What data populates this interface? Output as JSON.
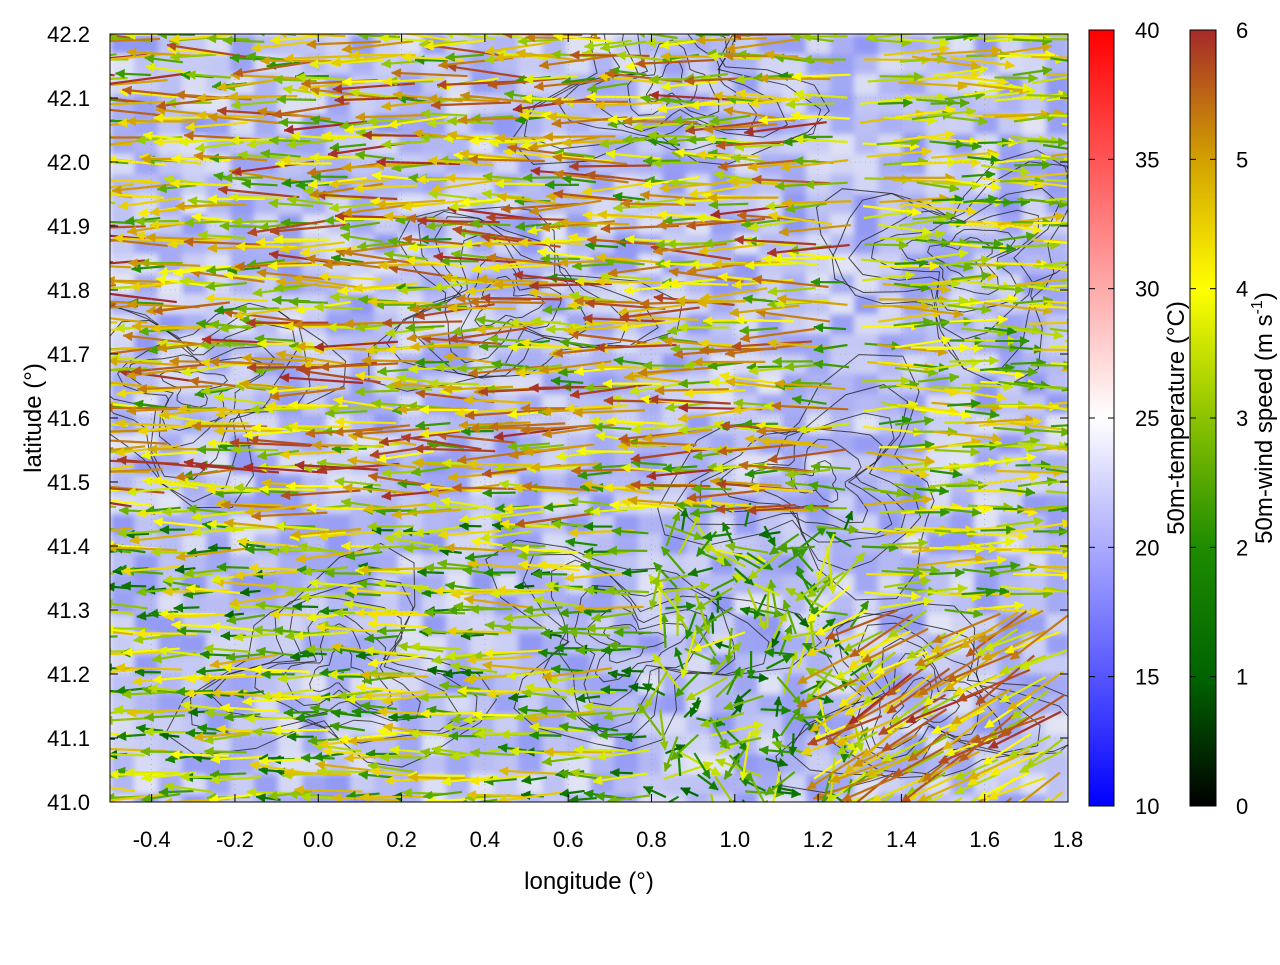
{
  "chart_data": {
    "type": "vector-field",
    "xlabel": "longitude (°)",
    "ylabel": "latitude (°)",
    "xlim": [
      -0.5,
      1.8
    ],
    "ylim": [
      41.0,
      42.2
    ],
    "x_ticks": [
      "-0.4",
      "-0.2",
      "0.0",
      "0.2",
      "0.4",
      "0.6",
      "0.8",
      "1.0",
      "1.2",
      "1.4",
      "1.6",
      "1.8"
    ],
    "y_ticks": [
      "41.0",
      "41.1",
      "41.2",
      "41.3",
      "41.4",
      "41.5",
      "41.6",
      "41.7",
      "41.8",
      "41.9",
      "42.0",
      "42.1",
      "42.2"
    ],
    "layers": [
      "50m-temperature shading",
      "terrain contours",
      "50m-wind vectors"
    ],
    "temperature_colorbar": {
      "label": "50m-temperature (°C)",
      "range": [
        10,
        40
      ],
      "ticks": [
        "10",
        "15",
        "20",
        "25",
        "30",
        "35",
        "40"
      ],
      "colors": [
        "#0000ff",
        "#ffffff",
        "#ff0000"
      ]
    },
    "wind_colorbar": {
      "label_prefix": "50m-wind speed (m s",
      "label_sup": "-1",
      "label_suffix": ")",
      "range": [
        0,
        6
      ],
      "ticks": [
        "0",
        "1",
        "2",
        "3",
        "4",
        "5",
        "6"
      ],
      "colors": [
        "#000000",
        "#006400",
        "#1e8c00",
        "#8cc300",
        "#ffff00",
        "#d2a000",
        "#a52a2a"
      ]
    },
    "wind_regions": [
      {
        "lon_range": [
          -0.5,
          1.3
        ],
        "lat_range": [
          41.45,
          42.2
        ],
        "direction": "westward",
        "speed_range": [
          2,
          6
        ]
      },
      {
        "lon_range": [
          -0.5,
          0.8
        ],
        "lat_range": [
          41.0,
          41.45
        ],
        "direction": "westward",
        "speed_range": [
          1,
          5
        ]
      },
      {
        "lon_range": [
          0.8,
          1.3
        ],
        "lat_range": [
          41.0,
          41.45
        ],
        "direction": "mixed",
        "speed_range": [
          1,
          4
        ]
      },
      {
        "lon_range": [
          1.3,
          1.8
        ],
        "lat_range": [
          41.3,
          42.2
        ],
        "direction": "eastward",
        "speed_range": [
          2,
          5
        ]
      },
      {
        "lon_range": [
          1.3,
          1.8
        ],
        "lat_range": [
          41.0,
          41.3
        ],
        "direction": "south-westward",
        "speed_range": [
          3,
          6
        ]
      }
    ]
  },
  "colors": {
    "contour": "#222222",
    "frame": "#000000"
  }
}
